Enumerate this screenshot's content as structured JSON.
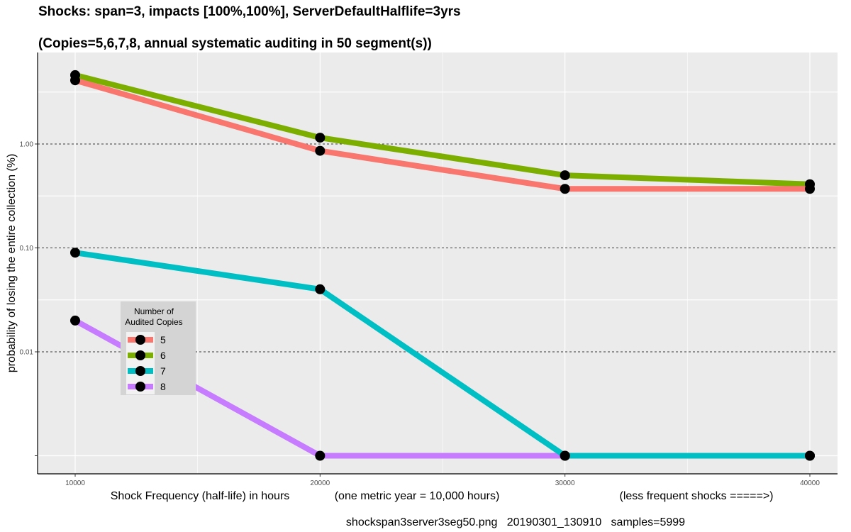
{
  "chart_data": {
    "type": "line",
    "title": "Shocks: span=3, impacts [100%,100%], ServerDefaultHalflife=3yrs",
    "subtitle": "(Copies=5,6,7,8, annual systematic auditing in 50 segment(s))",
    "xlabel_parts": [
      "Shock Frequency (half-life) in hours",
      "(one metric year = 10,000 hours)",
      "(less frequent shocks =====>)"
    ],
    "ylabel": "probability of losing the entire collection (%)",
    "y_scale": "log",
    "x_ticks": [
      10000,
      20000,
      30000,
      40000
    ],
    "y_ticks": [
      "1.00",
      "0.10",
      "0.01"
    ],
    "x": [
      10000,
      20000,
      30000,
      40000
    ],
    "grid": true,
    "legend": {
      "title_lines": [
        "Number of",
        "Audited Copies"
      ],
      "position": "inside-left"
    },
    "series": [
      {
        "name": "5",
        "color": "#F8766D",
        "values": [
          4.1,
          0.86,
          0.37,
          0.37
        ]
      },
      {
        "name": "6",
        "color": "#7CAE00",
        "values": [
          4.6,
          1.15,
          0.5,
          0.41
        ]
      },
      {
        "name": "7",
        "color": "#00BFC4",
        "values": [
          0.09,
          0.04,
          0.001,
          0.001
        ]
      },
      {
        "name": "8",
        "color": "#C77CFF",
        "values": [
          0.02,
          0.001,
          0.001,
          0.001
        ]
      }
    ],
    "footer": "shockspan3server3seg50.png   20190301_130910   samples=5999"
  }
}
